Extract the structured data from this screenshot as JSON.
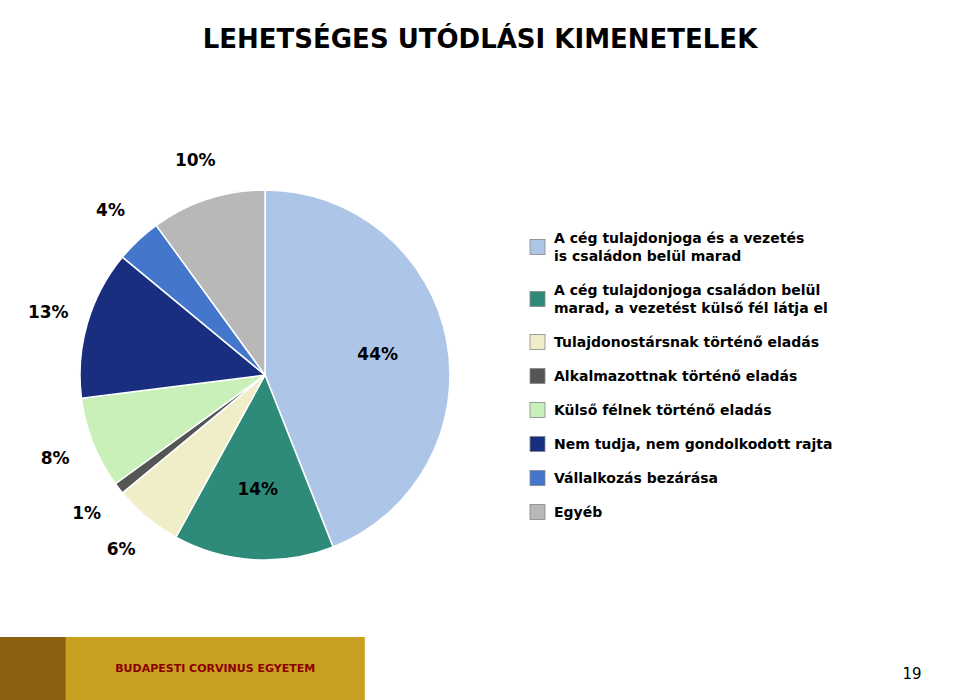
{
  "chart_data": {
    "type": "pie",
    "title": "LEHETSÉGES UTÓDLÁSI KIMENETELEK",
    "categories": [
      "A cég tulajdonjoga és a vezetés\nis családon belül marad",
      "A cég tulajdonjoga családon belül\nmarad, a vezetést külső fél látja el",
      "Tulajdonostársnak történő eladás",
      "Alkalmazottnak történő eladás",
      "Külső félnek történő eladás",
      "Nem tudja, nem gondolkodott rajta",
      "Vállalkozás bezárása",
      "Egyéb"
    ],
    "values": [
      44,
      14,
      6,
      1,
      8,
      13,
      4,
      10
    ],
    "value_labels": [
      "44%",
      "14%",
      "6%",
      "1%",
      "8%",
      "13%",
      "4%",
      "10%"
    ],
    "colors": [
      "#adc6e8",
      "#2e8b7a",
      "#f0eec8",
      "#555555",
      "#c8f0b8",
      "#1a2e80",
      "#4477cc",
      "#b8b8b8"
    ],
    "data_labels": true,
    "annotations": [
      "19",
      "BUDAPESTI CORVINUS EGYETEM"
    ]
  }
}
